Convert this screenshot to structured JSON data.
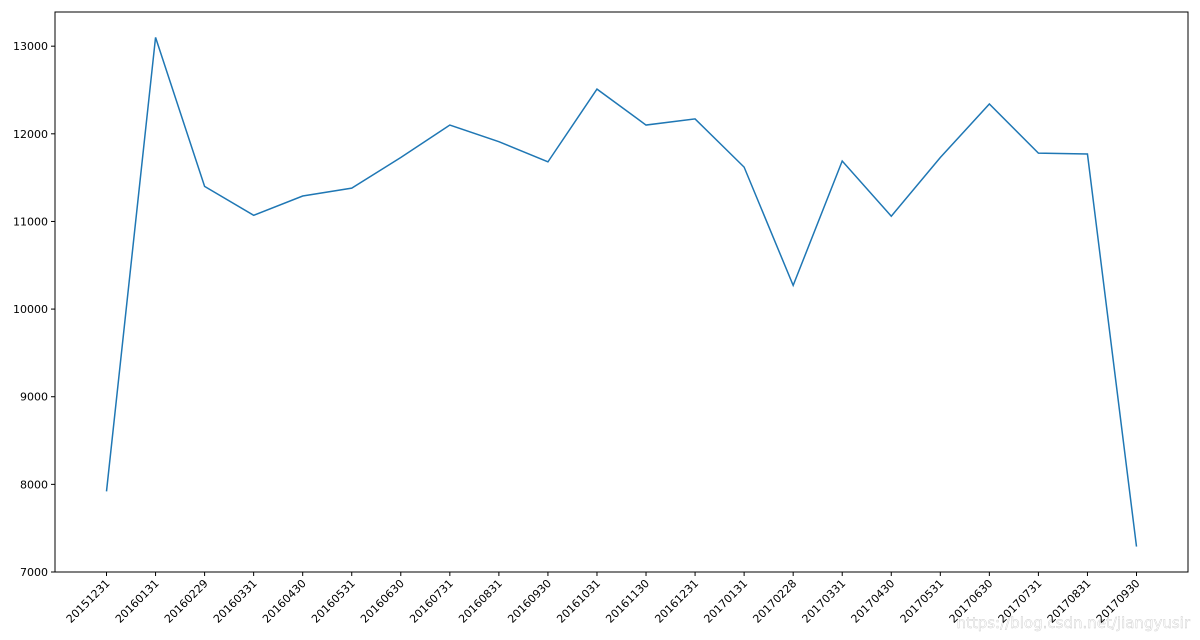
{
  "chart_data": {
    "type": "line",
    "categories": [
      "20151231",
      "20160131",
      "20160229",
      "20160331",
      "20160430",
      "20160531",
      "20160630",
      "20160731",
      "20160831",
      "20160930",
      "20161031",
      "20161130",
      "20161231",
      "20170131",
      "20170228",
      "20170331",
      "20170430",
      "20170531",
      "20170630",
      "20170731",
      "20170831",
      "20170930"
    ],
    "series": [
      {
        "color": "#1f77b4",
        "values": [
          7920,
          13100,
          11400,
          11070,
          11290,
          11380,
          11730,
          12100,
          11910,
          11680,
          12510,
          12100,
          12170,
          11620,
          10270,
          11690,
          11060,
          11730,
          12340,
          11780,
          11770,
          7290
        ]
      }
    ],
    "ylim": [
      7000,
      13390
    ],
    "yticks": [
      7000,
      8000,
      9000,
      10000,
      11000,
      12000,
      13000
    ],
    "watermark": "https://blog.csdn.net/jiangyusir"
  }
}
